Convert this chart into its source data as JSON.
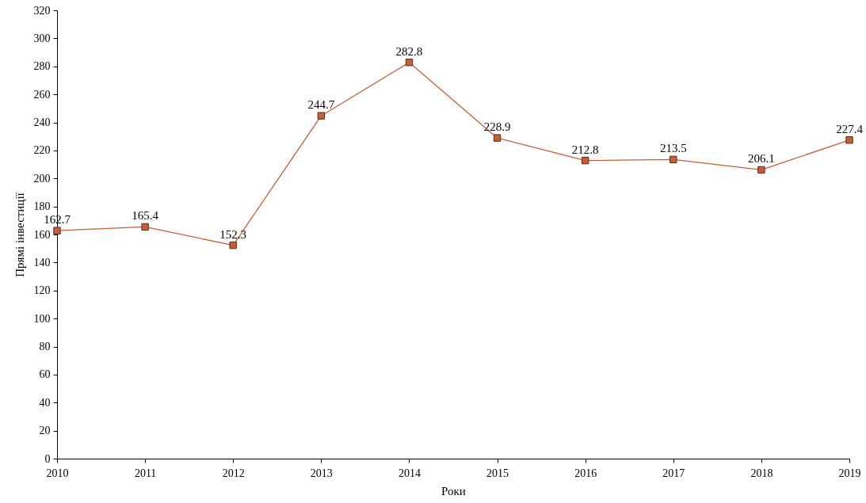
{
  "chart_data": {
    "type": "line",
    "xlabel": "Роки",
    "ylabel": "Прямі інвестиції",
    "x": [
      2010,
      2011,
      2012,
      2013,
      2014,
      2015,
      2016,
      2017,
      2018,
      2019
    ],
    "series": [
      {
        "color": "#c0603c",
        "values": [
          162.7,
          165.4,
          152.3,
          244.7,
          282.8,
          228.9,
          212.8,
          213.5,
          206.1,
          227.4
        ]
      }
    ],
    "xlim": [
      2010,
      2019
    ],
    "xticks": [
      2010,
      2011,
      2012,
      2013,
      2014,
      2015,
      2016,
      2017,
      2018,
      2019
    ],
    "ylim": [
      0,
      320
    ],
    "yticks": [
      0,
      20,
      40,
      60,
      80,
      100,
      120,
      140,
      160,
      180,
      200,
      220,
      240,
      260,
      280,
      300,
      320
    ],
    "grid": false,
    "marker": "square",
    "line_style": "solid",
    "data_labels": true
  }
}
